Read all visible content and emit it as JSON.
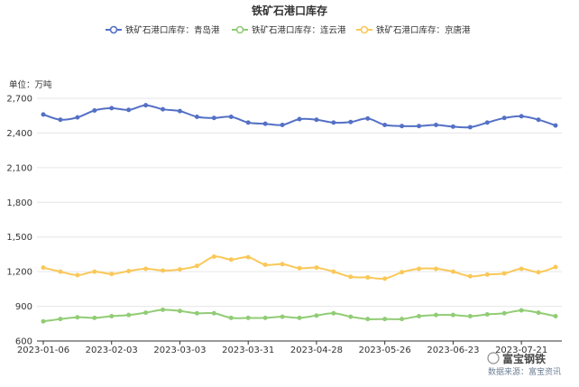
{
  "chart_data": {
    "type": "line",
    "title": "铁矿石港口库存",
    "unit_label": "单位：万吨",
    "ylim": [
      600,
      2700
    ],
    "yticks": [
      600,
      900,
      1200,
      1500,
      1800,
      2100,
      2400,
      2700
    ],
    "ytick_labels": [
      "600",
      "900",
      "1,200",
      "1,500",
      "1,800",
      "2,100",
      "2,400",
      "2,700"
    ],
    "xtick_labels": [
      "2023-01-06",
      "2023-02-03",
      "2023-03-03",
      "2023-03-31",
      "2023-04-28",
      "2023-05-26",
      "2023-06-23",
      "2023-07-21"
    ],
    "x": [
      "2023-01-06",
      "2023-01-13",
      "2023-01-20",
      "2023-01-27",
      "2023-02-03",
      "2023-02-10",
      "2023-02-17",
      "2023-02-24",
      "2023-03-03",
      "2023-03-10",
      "2023-03-17",
      "2023-03-24",
      "2023-03-31",
      "2023-04-07",
      "2023-04-14",
      "2023-04-21",
      "2023-04-28",
      "2023-05-05",
      "2023-05-12",
      "2023-05-19",
      "2023-05-26",
      "2023-06-02",
      "2023-06-09",
      "2023-06-16",
      "2023-06-23",
      "2023-06-30",
      "2023-07-07",
      "2023-07-14",
      "2023-07-21",
      "2023-07-28",
      "2023-08-04"
    ],
    "grid": true,
    "legend_position": "top",
    "series": [
      {
        "name": "铁矿石港口库存：青岛港",
        "color": "#5470c6",
        "values": [
          2560,
          2515,
          2535,
          2595,
          2615,
          2600,
          2640,
          2605,
          2590,
          2540,
          2530,
          2540,
          2490,
          2480,
          2470,
          2520,
          2515,
          2490,
          2495,
          2525,
          2470,
          2460,
          2460,
          2470,
          2455,
          2450,
          2490,
          2530,
          2545,
          2515,
          2465
        ]
      },
      {
        "name": "铁矿石港口库存：连云港",
        "color": "#91cc75",
        "values": [
          770,
          790,
          805,
          800,
          815,
          825,
          845,
          870,
          860,
          840,
          840,
          800,
          800,
          800,
          810,
          800,
          820,
          840,
          810,
          790,
          790,
          790,
          815,
          825,
          825,
          815,
          830,
          840,
          865,
          845,
          815
        ]
      },
      {
        "name": "铁矿石港口库存：京唐港",
        "color": "#fac858",
        "values": [
          1235,
          1200,
          1170,
          1200,
          1180,
          1205,
          1225,
          1210,
          1220,
          1250,
          1330,
          1305,
          1325,
          1260,
          1265,
          1230,
          1235,
          1200,
          1155,
          1150,
          1140,
          1195,
          1225,
          1225,
          1200,
          1160,
          1175,
          1185,
          1225,
          1195,
          1240
        ]
      }
    ]
  },
  "watermark": {
    "brand": "富宝钢铁",
    "source": "数据来源：富宝资讯"
  }
}
